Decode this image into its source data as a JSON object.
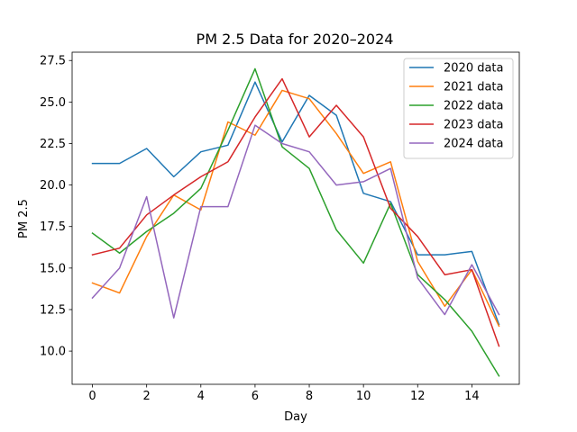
{
  "chart_data": {
    "type": "line",
    "title": "PM 2.5 Data for 2020–2024",
    "xlabel": "Day",
    "ylabel": "PM 2.5",
    "x": [
      0,
      1,
      2,
      3,
      4,
      5,
      6,
      7,
      8,
      9,
      10,
      11,
      12,
      13,
      14,
      15
    ],
    "xlim": [
      -0.75,
      15.75
    ],
    "ylim": [
      8.0,
      28.0
    ],
    "xticks": [
      0,
      2,
      4,
      6,
      8,
      10,
      12,
      14
    ],
    "xtick_labels": [
      "0",
      "2",
      "4",
      "6",
      "8",
      "10",
      "12",
      "14"
    ],
    "yticks": [
      10.0,
      12.5,
      15.0,
      17.5,
      20.0,
      22.5,
      25.0,
      27.5
    ],
    "ytick_labels": [
      "10.0",
      "12.5",
      "15.0",
      "17.5",
      "20.0",
      "22.5",
      "25.0",
      "27.5"
    ],
    "grid": false,
    "legend_position": "top-right",
    "series": [
      {
        "name": "2020 data",
        "color": "#1f77b4",
        "values": [
          21.3,
          21.3,
          22.2,
          20.5,
          22.0,
          22.4,
          26.2,
          22.6,
          25.4,
          24.2,
          19.5,
          19.0,
          15.8,
          15.8,
          16.0,
          11.6
        ]
      },
      {
        "name": "2021 data",
        "color": "#ff7f0e",
        "values": [
          14.1,
          13.5,
          16.9,
          19.4,
          18.5,
          23.8,
          23.0,
          25.7,
          25.2,
          23.1,
          20.7,
          21.4,
          15.4,
          12.7,
          14.9,
          11.5
        ]
      },
      {
        "name": "2022 data",
        "color": "#2ca02c",
        "values": [
          17.1,
          15.9,
          17.2,
          18.3,
          19.8,
          23.3,
          27.0,
          22.3,
          21.0,
          17.3,
          15.3,
          18.9,
          14.6,
          13.1,
          11.2,
          8.5
        ]
      },
      {
        "name": "2023 data",
        "color": "#d62728",
        "values": [
          15.8,
          16.2,
          18.2,
          19.4,
          20.5,
          21.4,
          24.1,
          26.4,
          22.9,
          24.8,
          22.9,
          18.6,
          16.9,
          14.6,
          14.9,
          10.3
        ]
      },
      {
        "name": "2024 data",
        "color": "#9467bd",
        "values": [
          13.2,
          15.0,
          19.3,
          12.0,
          18.7,
          18.7,
          23.6,
          22.5,
          22.0,
          20.0,
          20.2,
          21.0,
          14.4,
          12.2,
          15.2,
          12.2
        ]
      }
    ]
  }
}
